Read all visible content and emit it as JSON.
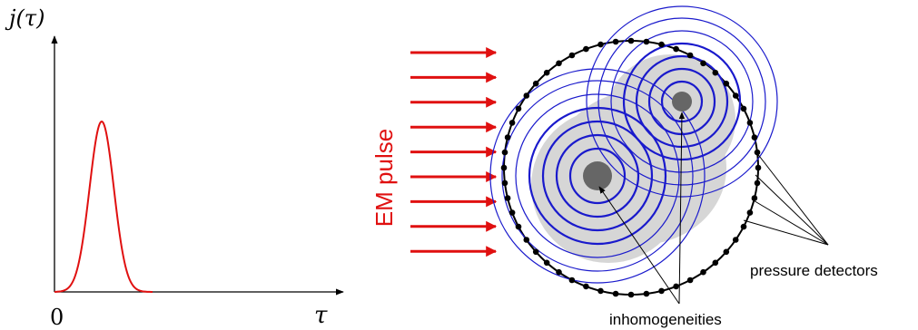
{
  "graph": {
    "y_label": "j(τ)",
    "x_label": "τ",
    "origin_label": "0",
    "curve_color": "#e01010"
  },
  "diagram": {
    "pulse_label": "EM pulse",
    "pulse_color": "#e01010",
    "arrow_count": 9,
    "wave_color": "#1a1acc",
    "detectors_label": "pressure detectors",
    "inhomogeneities_label": "inhomogeneities"
  }
}
